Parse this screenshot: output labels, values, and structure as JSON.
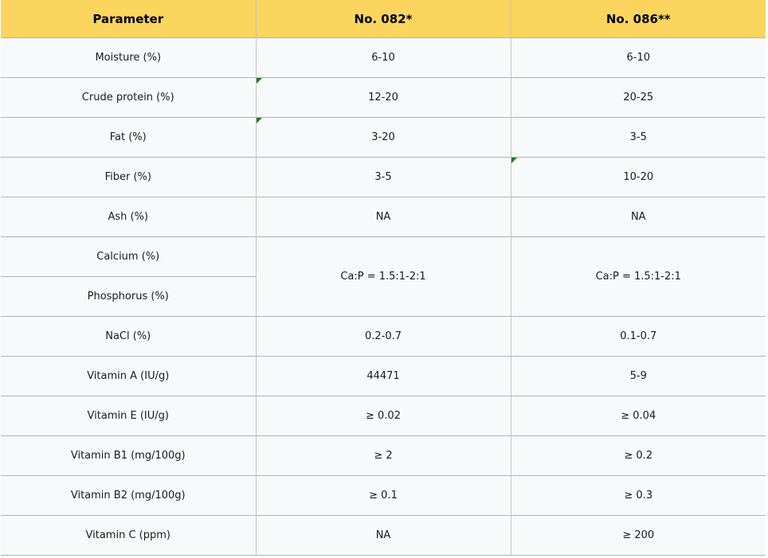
{
  "colors": {
    "header_background": "#fbd55e",
    "cell_background": "#f8f9fb",
    "border": "#b3b3b3",
    "flag_green": "#1e7b1e",
    "text": "#000000"
  },
  "markers": {
    "shape": "corner-triangle-flag",
    "color": "#1e7b1e",
    "cells": [
      {
        "row": "Crude protein (%)",
        "column": "No. 082*"
      },
      {
        "row": "Fat (%)",
        "column": "No. 082*"
      },
      {
        "row": "Fiber (%)",
        "column": "No. 086**"
      }
    ]
  },
  "chart_data": {
    "type": "table",
    "title": "",
    "columns": [
      "Parameter",
      "No. 082*",
      "No. 086**"
    ],
    "merged_value_rows": [
      [
        5,
        6
      ]
    ],
    "rows": [
      {
        "parameter": "Moisture (%)",
        "no082": "6-10",
        "no086": "6-10"
      },
      {
        "parameter": "Crude protein (%)",
        "no082": "12-20",
        "no086": "20-25"
      },
      {
        "parameter": "Fat (%)",
        "no082": "3-20",
        "no086": "3-5"
      },
      {
        "parameter": "Fiber (%)",
        "no082": "3-5",
        "no086": "10-20"
      },
      {
        "parameter": "Ash (%)",
        "no082": "NA",
        "no086": "NA"
      },
      {
        "parameter": "Calcium (%)",
        "no082": "Ca:P = 1.5:1-2:1",
        "no086": "Ca:P = 1.5:1-2:1"
      },
      {
        "parameter": "Phosphorus (%)",
        "no082": "Ca:P = 1.5:1-2:1",
        "no086": "Ca:P = 1.5:1-2:1"
      },
      {
        "parameter": "NaCl (%)",
        "no082": "0.2-0.7",
        "no086": "0.1-0.7"
      },
      {
        "parameter": "Vitamin A (IU/g)",
        "no082": "44471",
        "no086": "5-9"
      },
      {
        "parameter": "Vitamin E (IU/g)",
        "no082": "≥ 0.02",
        "no086": "≥ 0.04"
      },
      {
        "parameter": "Vitamin B1 (mg/100g)",
        "no082": "≥ 2",
        "no086": "≥ 0.2"
      },
      {
        "parameter": "Vitamin B2 (mg/100g)",
        "no082": "≥ 0.1",
        "no086": "≥ 0.3"
      },
      {
        "parameter": "Vitamin C (ppm)",
        "no082": "NA",
        "no086": "≥ 200"
      }
    ]
  }
}
